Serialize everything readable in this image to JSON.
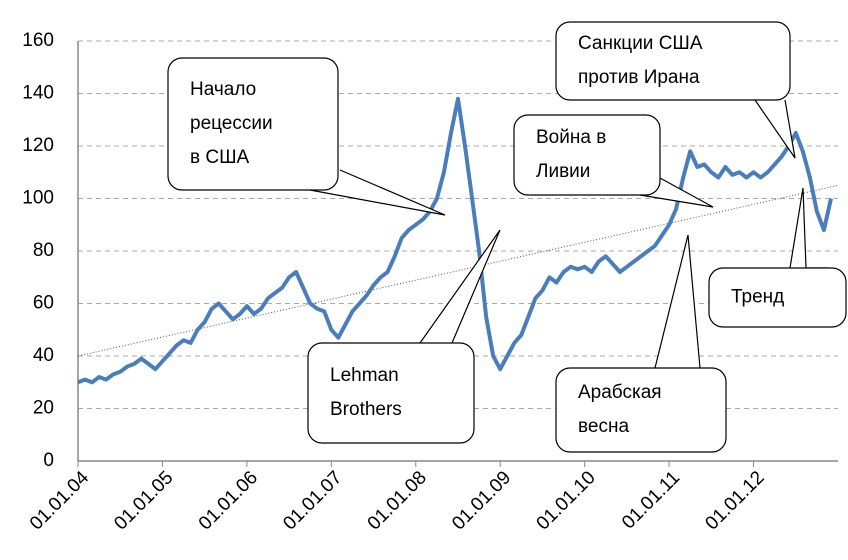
{
  "chart_data": {
    "type": "line",
    "x": [
      "01.01.04",
      "01.02.04",
      "01.03.04",
      "01.04.04",
      "01.05.04",
      "01.06.04",
      "01.07.04",
      "01.08.04",
      "01.09.04",
      "01.10.04",
      "01.11.04",
      "01.12.04",
      "01.01.05",
      "01.02.05",
      "01.03.05",
      "01.04.05",
      "01.05.05",
      "01.06.05",
      "01.07.05",
      "01.08.05",
      "01.09.05",
      "01.10.05",
      "01.11.05",
      "01.12.05",
      "01.01.06",
      "01.02.06",
      "01.03.06",
      "01.04.06",
      "01.05.06",
      "01.06.06",
      "01.07.06",
      "01.08.06",
      "01.09.06",
      "01.10.06",
      "01.11.06",
      "01.12.06",
      "01.01.07",
      "01.02.07",
      "01.03.07",
      "01.04.07",
      "01.05.07",
      "01.06.07",
      "01.07.07",
      "01.08.07",
      "01.09.07",
      "01.10.07",
      "01.11.07",
      "01.12.07",
      "01.01.08",
      "01.02.08",
      "01.03.08",
      "01.04.08",
      "01.05.08",
      "01.06.08",
      "01.07.08",
      "01.08.08",
      "01.09.08",
      "01.10.08",
      "01.11.08",
      "01.12.08",
      "01.01.09",
      "01.02.09",
      "01.03.09",
      "01.04.09",
      "01.05.09",
      "01.06.09",
      "01.07.09",
      "01.08.09",
      "01.09.09",
      "01.10.09",
      "01.11.09",
      "01.12.09",
      "01.01.10",
      "01.02.10",
      "01.03.10",
      "01.04.10",
      "01.05.10",
      "01.06.10",
      "01.07.10",
      "01.08.10",
      "01.09.10",
      "01.10.10",
      "01.11.10",
      "01.12.10",
      "01.01.11",
      "01.02.11",
      "01.03.11",
      "01.04.11",
      "01.05.11",
      "01.06.11",
      "01.07.11",
      "01.08.11",
      "01.09.11",
      "01.10.11",
      "01.11.11",
      "01.12.11",
      "01.01.12",
      "01.02.12",
      "01.03.12",
      "01.04.12",
      "01.05.12",
      "01.06.12",
      "01.07.12",
      "01.08.12",
      "01.09.12",
      "01.10.12",
      "01.11.12",
      "01.12.12"
    ],
    "series": [
      {
        "color": "#4a7ebb",
        "values": [
          30,
          31,
          30,
          32,
          31,
          33,
          34,
          36,
          37,
          39,
          37,
          35,
          38,
          41,
          44,
          46,
          45,
          50,
          53,
          58,
          60,
          57,
          54,
          56,
          59,
          56,
          58,
          62,
          64,
          66,
          70,
          72,
          66,
          60,
          58,
          57,
          50,
          47,
          52,
          57,
          60,
          63,
          67,
          70,
          72,
          78,
          85,
          88,
          90,
          92,
          95,
          100,
          110,
          125,
          138,
          120,
          100,
          80,
          55,
          40,
          35,
          40,
          45,
          48,
          55,
          62,
          65,
          70,
          68,
          72,
          74,
          73,
          74,
          72,
          76,
          78,
          75,
          72,
          74,
          76,
          78,
          80,
          82,
          86,
          90,
          96,
          108,
          118,
          112,
          113,
          110,
          108,
          112,
          109,
          110,
          108,
          110,
          108,
          110,
          113,
          116,
          120,
          125,
          118,
          108,
          95,
          88,
          100
        ]
      }
    ],
    "trend": {
      "values": [
        40,
        105
      ]
    },
    "xlim": [
      "01.01.04",
      "01.01.13"
    ],
    "xticks": [
      "01.01.04",
      "01.01.05",
      "01.01.06",
      "01.01.07",
      "01.01.08",
      "01.01.09",
      "01.01.10",
      "01.01.11",
      "01.01.12"
    ],
    "ylim": [
      0,
      160
    ],
    "yticks": [
      0,
      20,
      40,
      60,
      80,
      100,
      120,
      140,
      160
    ],
    "grid": true,
    "annotations": [
      {
        "lines": [
          "Начало",
          "рецессии",
          "в США"
        ]
      },
      {
        "lines": [
          "Lehman",
          "Brothers"
        ]
      },
      {
        "lines": [
          "Война в",
          "Ливии"
        ]
      },
      {
        "lines": [
          "Санкции США",
          "против Ирана"
        ]
      },
      {
        "lines": [
          "Арабская",
          "весна"
        ]
      },
      {
        "lines": [
          "Тренд"
        ]
      }
    ]
  }
}
